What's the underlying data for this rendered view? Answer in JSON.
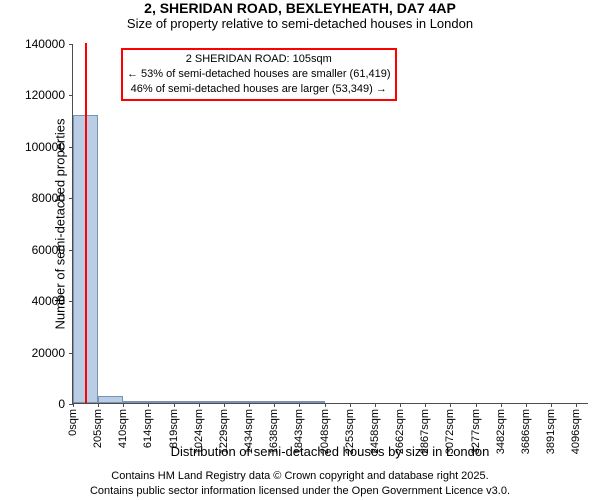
{
  "title": "2, SHERIDAN ROAD, BEXLEYHEATH, DA7 4AP",
  "subtitle": "Size of property relative to semi-detached houses in London",
  "ylabel": "Number of semi-detached properties",
  "xlabel": "Distribution of semi-detached houses by size in London",
  "chart": {
    "type": "bar",
    "xlim": [
      0,
      4200
    ],
    "ylim": [
      0,
      140000
    ],
    "yticks": [
      0,
      20000,
      40000,
      60000,
      80000,
      100000,
      120000,
      140000
    ],
    "xticks": [
      0,
      205,
      410,
      614,
      819,
      1024,
      1229,
      1434,
      1638,
      1843,
      2048,
      2253,
      2458,
      2662,
      2867,
      3072,
      3277,
      3482,
      3686,
      3891,
      4096
    ],
    "xtick_suffix": "sqm",
    "bar_color": "#b9cde5",
    "bar_border": "#7a93b3",
    "grid_color": "#ffffff",
    "marker_color": "#ff0000",
    "background_color": "#ffffff",
    "tick_fontsize": 12,
    "xtick_fontsize": 11,
    "label_fontsize": 13,
    "title_fontsize": 14,
    "bars": [
      {
        "x0": 0,
        "x1": 205,
        "value": 112000
      },
      {
        "x0": 205,
        "x1": 410,
        "value": 2700
      },
      {
        "x0": 410,
        "x1": 614,
        "value": 300
      },
      {
        "x0": 614,
        "x1": 819,
        "value": 150
      },
      {
        "x0": 819,
        "x1": 1024,
        "value": 90
      },
      {
        "x0": 1024,
        "x1": 1229,
        "value": 60
      },
      {
        "x0": 1229,
        "x1": 1434,
        "value": 40
      },
      {
        "x0": 1434,
        "x1": 1638,
        "value": 30
      },
      {
        "x0": 1638,
        "x1": 1843,
        "value": 20
      },
      {
        "x0": 1843,
        "x1": 2048,
        "value": 15
      }
    ],
    "marker_x": 105
  },
  "annotation": {
    "line1": "2 SHERIDAN ROAD: 105sqm",
    "line2": "← 53% of semi-detached houses are smaller (61,419)",
    "line3": "46% of semi-detached houses are larger (53,349) →",
    "border_color": "#ff0000",
    "text_color": "#000000",
    "fontsize": 11
  },
  "footer": {
    "line1": "Contains HM Land Registry data © Crown copyright and database right 2025.",
    "line2": "Contains public sector information licensed under the Open Government Licence v3.0."
  }
}
